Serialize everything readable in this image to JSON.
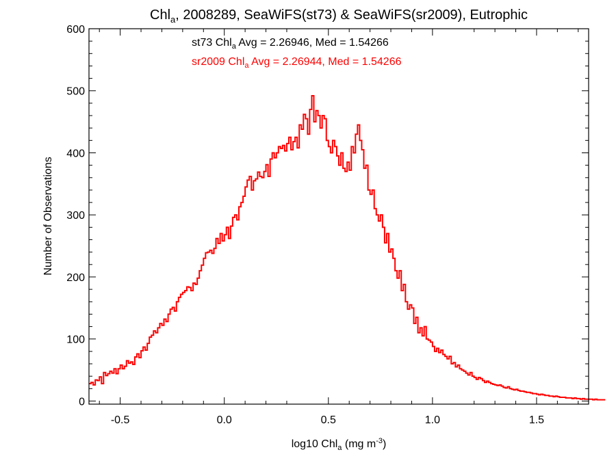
{
  "chart_data": {
    "type": "line",
    "style": "histogram-step",
    "title": {
      "prefix": "Chl",
      "sub": "a",
      "suffix": ", 2008289, SeaWiFS(st73) & SeaWiFS(sr2009), Eutrophic"
    },
    "xlabel": {
      "prefix": "log10 Chl",
      "sub": "a",
      "mid": " (mg m",
      "sup": "-3",
      "suffix": ")"
    },
    "ylabel": "Number of Observations",
    "xlim": [
      -0.65,
      1.75
    ],
    "ylim": [
      -5,
      600
    ],
    "xticks": [
      -0.5,
      0.0,
      0.5,
      1.0,
      1.5
    ],
    "xtick_labels": [
      "-0.5",
      "0.0",
      "0.5",
      "1.0",
      "1.5"
    ],
    "yticks": [
      0,
      100,
      200,
      300,
      400,
      500,
      600
    ],
    "ytick_labels": [
      "0",
      "100",
      "200",
      "300",
      "400",
      "500",
      "600"
    ],
    "annotations": [
      {
        "prefix": "st73 Chl",
        "sub": "a",
        "suffix": " Avg = 2.26946, Med = 1.54266",
        "color": "#000000"
      },
      {
        "prefix": "sr2009 Chl",
        "sub": "a",
        "suffix": " Avg = 2.26944, Med = 1.54266",
        "color": "#ff0000"
      }
    ],
    "bin_width": 0.01,
    "x_start": -0.65,
    "series": [
      {
        "color": "#ff0000",
        "values": [
          28,
          30,
          26,
          34,
          33,
          39,
          28,
          46,
          41,
          44,
          48,
          45,
          52,
          44,
          52,
          58,
          52,
          56,
          65,
          61,
          63,
          59,
          71,
          76,
          70,
          81,
          87,
          82,
          93,
          103,
          106,
          113,
          110,
          118,
          125,
          122,
          132,
          128,
          140,
          148,
          151,
          145,
          160,
          167,
          172,
          175,
          178,
          184,
          183,
          178,
          190,
          188,
          198,
          210,
          219,
          230,
          239,
          240,
          243,
          238,
          246,
          262,
          254,
          270,
          258,
          268,
          280,
          262,
          282,
          296,
          300,
          292,
          313,
          320,
          330,
          345,
          356,
          362,
          340,
          355,
          358,
          369,
          362,
          360,
          370,
          381,
          362,
          390,
          400,
          392,
          400,
          410,
          407,
          412,
          403,
          415,
          425,
          405,
          418,
          425,
          408,
          445,
          438,
          462,
          455,
          430,
          470,
          492,
          450,
          468,
          460,
          440,
          460,
          455,
          420,
          410,
          400,
          420,
          410,
          395,
          380,
          400,
          375,
          370,
          385,
          372,
          410,
          400,
          430,
          445,
          420,
          405,
          375,
          380,
          340,
          333,
          340,
          310,
          300,
          290,
          300,
          280,
          255,
          270,
          240,
          245,
          230,
          210,
          198,
          210,
          178,
          188,
          160,
          148,
          155,
          150,
          125,
          135,
          110,
          118,
          105,
          120,
          100,
          98,
          95,
          88,
          80,
          85,
          78,
          82,
          75,
          72,
          68,
          72,
          60,
          62,
          55,
          58,
          52,
          50,
          48,
          45,
          42,
          46,
          40,
          38,
          35,
          38,
          36,
          33,
          30,
          32,
          30,
          28,
          27,
          26,
          25,
          26,
          24,
          22,
          21,
          23,
          20,
          19,
          18,
          19,
          17,
          16,
          16,
          15,
          14,
          14,
          13,
          12,
          12,
          11,
          10,
          11,
          10,
          9,
          9,
          8,
          8,
          7,
          8,
          7,
          6,
          6,
          6,
          5,
          5,
          5,
          4,
          5,
          4,
          4,
          3,
          4,
          3,
          3,
          3,
          3,
          2,
          3,
          2,
          2,
          2,
          2
        ]
      }
    ]
  }
}
